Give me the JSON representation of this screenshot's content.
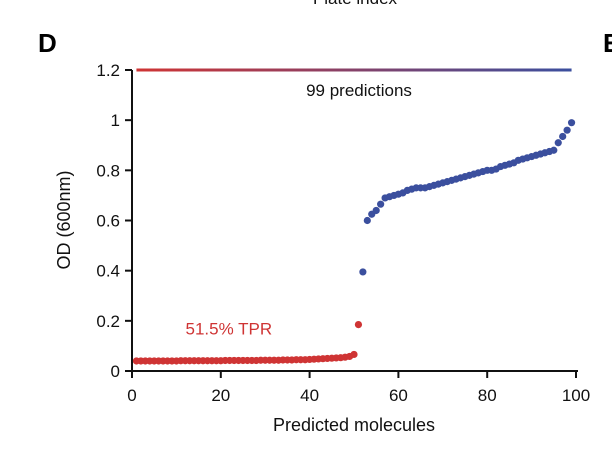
{
  "header_cut_text": "Plate index",
  "panel_letter": "D",
  "next_panel_letter": "E",
  "colors": {
    "positive": "#3b4f9e",
    "negative": "#cf3434",
    "axis": "#111111",
    "text": "#111111"
  },
  "chart_data": {
    "type": "scatter",
    "title": "",
    "xlabel": "Predicted molecules",
    "ylabel": "OD (600nm)",
    "xlim": [
      0,
      100
    ],
    "ylim": [
      0,
      1.2
    ],
    "xticks": [
      "0",
      "20",
      "40",
      "60",
      "80",
      "100"
    ],
    "yticks": [
      "0",
      "0.2",
      "0.4",
      "0.6",
      "0.8",
      "1",
      "1.2"
    ],
    "grid": false,
    "legend": "none",
    "annotations": [
      {
        "text": "99 predictions",
        "x": 50,
        "y": 1.12
      },
      {
        "text": "51.5% TPR",
        "x": 20,
        "y": 0.17
      }
    ],
    "bracket": {
      "x_start": 1,
      "x_end": 99,
      "y": 1.2,
      "gradient": [
        "#cf3434",
        "#3b4f9e"
      ]
    },
    "series": [
      {
        "x": [
          1,
          2,
          3,
          4,
          5,
          6,
          7,
          8,
          9,
          10,
          11,
          12,
          13,
          14,
          15,
          16,
          17,
          18,
          19,
          20,
          21,
          22,
          23,
          24,
          25,
          26,
          27,
          28,
          29,
          30,
          31,
          32,
          33,
          34,
          35,
          36,
          37,
          38,
          39,
          40,
          41,
          42,
          43,
          44,
          45,
          46,
          47,
          48,
          49,
          50,
          51
        ],
        "y": [
          0.04,
          0.04,
          0.04,
          0.04,
          0.04,
          0.04,
          0.04,
          0.04,
          0.04,
          0.04,
          0.041,
          0.041,
          0.041,
          0.041,
          0.041,
          0.041,
          0.041,
          0.041,
          0.041,
          0.041,
          0.042,
          0.042,
          0.042,
          0.042,
          0.042,
          0.042,
          0.042,
          0.042,
          0.043,
          0.043,
          0.043,
          0.043,
          0.043,
          0.044,
          0.044,
          0.044,
          0.045,
          0.045,
          0.045,
          0.046,
          0.047,
          0.048,
          0.049,
          0.05,
          0.051,
          0.052,
          0.053,
          0.055,
          0.058,
          0.066,
          0.185
        ]
      },
      {
        "x": [
          52,
          53,
          54,
          55,
          56,
          57,
          58,
          59,
          60,
          61,
          62,
          63,
          64,
          65,
          66,
          67,
          68,
          69,
          70,
          71,
          72,
          73,
          74,
          75,
          76,
          77,
          78,
          79,
          80,
          81,
          82,
          83,
          84,
          85,
          86,
          87,
          88,
          89,
          90,
          91,
          92,
          93,
          94,
          95,
          96,
          97,
          98,
          99
        ],
        "y": [
          0.395,
          0.6,
          0.625,
          0.64,
          0.665,
          0.69,
          0.695,
          0.7,
          0.705,
          0.71,
          0.72,
          0.725,
          0.73,
          0.73,
          0.73,
          0.735,
          0.74,
          0.745,
          0.75,
          0.755,
          0.76,
          0.765,
          0.77,
          0.775,
          0.78,
          0.785,
          0.79,
          0.795,
          0.8,
          0.8,
          0.805,
          0.815,
          0.82,
          0.825,
          0.83,
          0.84,
          0.845,
          0.85,
          0.855,
          0.86,
          0.865,
          0.87,
          0.875,
          0.88,
          0.91,
          0.935,
          0.96,
          0.99
        ]
      }
    ]
  }
}
